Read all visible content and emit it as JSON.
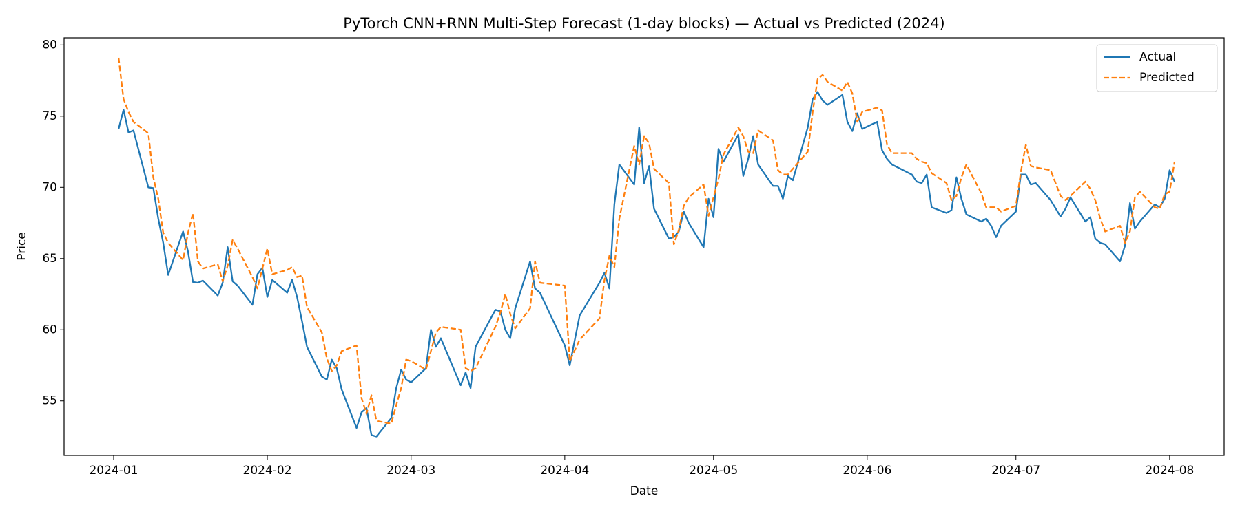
{
  "chart_data": {
    "type": "line",
    "title": "PyTorch CNN+RNN Multi-Step Forecast (1-day blocks) — Actual vs Predicted (2024)",
    "x_label": "Date",
    "y_label": "Price",
    "x": [
      "2024-01-02",
      "2024-01-03",
      "2024-01-04",
      "2024-01-05",
      "2024-01-08",
      "2024-01-09",
      "2024-01-10",
      "2024-01-11",
      "2024-01-12",
      "2024-01-15",
      "2024-01-16",
      "2024-01-17",
      "2024-01-18",
      "2024-01-19",
      "2024-01-22",
      "2024-01-23",
      "2024-01-24",
      "2024-01-25",
      "2024-01-26",
      "2024-01-29",
      "2024-01-30",
      "2024-01-31",
      "2024-02-01",
      "2024-02-02",
      "2024-02-05",
      "2024-02-06",
      "2024-02-07",
      "2024-02-08",
      "2024-02-09",
      "2024-02-12",
      "2024-02-13",
      "2024-02-14",
      "2024-02-15",
      "2024-02-16",
      "2024-02-19",
      "2024-02-20",
      "2024-02-21",
      "2024-02-22",
      "2024-02-23",
      "2024-02-26",
      "2024-02-27",
      "2024-02-28",
      "2024-02-29",
      "2024-03-01",
      "2024-03-04",
      "2024-03-05",
      "2024-03-06",
      "2024-03-07",
      "2024-03-11",
      "2024-03-12",
      "2024-03-13",
      "2024-03-14",
      "2024-03-18",
      "2024-03-19",
      "2024-03-20",
      "2024-03-21",
      "2024-03-22",
      "2024-03-25",
      "2024-03-26",
      "2024-03-27",
      "2024-04-01",
      "2024-04-02",
      "2024-04-04",
      "2024-04-08",
      "2024-04-09",
      "2024-04-10",
      "2024-04-11",
      "2024-04-12",
      "2024-04-15",
      "2024-04-16",
      "2024-04-17",
      "2024-04-18",
      "2024-04-19",
      "2024-04-22",
      "2024-04-23",
      "2024-04-24",
      "2024-04-25",
      "2024-04-26",
      "2024-04-29",
      "2024-04-30",
      "2024-05-01",
      "2024-05-02",
      "2024-05-03",
      "2024-05-06",
      "2024-05-07",
      "2024-05-08",
      "2024-05-09",
      "2024-05-10",
      "2024-05-13",
      "2024-05-14",
      "2024-05-15",
      "2024-05-16",
      "2024-05-17",
      "2024-05-20",
      "2024-05-21",
      "2024-05-22",
      "2024-05-23",
      "2024-05-24",
      "2024-05-27",
      "2024-05-28",
      "2024-05-29",
      "2024-05-30",
      "2024-05-31",
      "2024-06-03",
      "2024-06-04",
      "2024-06-05",
      "2024-06-06",
      "2024-06-10",
      "2024-06-11",
      "2024-06-12",
      "2024-06-13",
      "2024-06-14",
      "2024-06-17",
      "2024-06-18",
      "2024-06-19",
      "2024-06-20",
      "2024-06-21",
      "2024-06-24",
      "2024-06-25",
      "2024-06-26",
      "2024-06-27",
      "2024-06-28",
      "2024-07-01",
      "2024-07-02",
      "2024-07-03",
      "2024-07-04",
      "2024-07-05",
      "2024-07-08",
      "2024-07-10",
      "2024-07-11",
      "2024-07-12",
      "2024-07-15",
      "2024-07-16",
      "2024-07-17",
      "2024-07-18",
      "2024-07-19",
      "2024-07-22",
      "2024-07-23",
      "2024-07-24",
      "2024-07-25",
      "2024-07-26",
      "2024-07-29",
      "2024-07-30",
      "2024-07-31",
      "2024-08-01",
      "2024-08-02"
    ],
    "series": [
      {
        "name": "Actual",
        "color": "#1f77b4",
        "dash": false,
        "values": [
          74.1,
          75.45,
          73.85,
          74.0,
          70.0,
          69.95,
          67.8,
          66.1,
          63.85,
          66.9,
          65.5,
          63.35,
          63.3,
          63.45,
          62.4,
          63.3,
          65.8,
          63.4,
          63.1,
          61.75,
          63.9,
          64.35,
          62.3,
          63.5,
          62.6,
          63.5,
          62.3,
          60.6,
          58.8,
          56.7,
          56.5,
          57.9,
          57.3,
          55.8,
          53.1,
          54.2,
          54.5,
          52.6,
          52.5,
          53.8,
          55.9,
          57.2,
          56.5,
          56.3,
          57.3,
          60.0,
          58.8,
          59.4,
          56.1,
          57.0,
          55.9,
          58.8,
          61.4,
          61.3,
          60.0,
          59.4,
          61.5,
          64.8,
          62.9,
          62.6,
          58.9,
          57.5,
          61.0,
          63.3,
          64.0,
          62.9,
          68.8,
          71.6,
          70.2,
          74.2,
          70.3,
          71.5,
          68.5,
          66.4,
          66.5,
          66.9,
          68.3,
          67.5,
          65.8,
          69.2,
          67.9,
          72.7,
          71.8,
          73.7,
          70.8,
          72.0,
          73.6,
          71.6,
          70.1,
          70.1,
          69.2,
          70.8,
          70.5,
          74.2,
          76.2,
          76.7,
          76.1,
          75.8,
          76.5,
          74.6,
          73.95,
          75.2,
          74.1,
          74.6,
          72.6,
          72.0,
          71.6,
          70.9,
          70.4,
          70.3,
          70.9,
          68.6,
          68.2,
          68.4,
          70.7,
          69.2,
          68.1,
          67.6,
          67.8,
          67.3,
          66.5,
          67.3,
          68.3,
          70.9,
          70.9,
          70.2,
          70.3,
          69.1,
          67.95,
          68.5,
          69.3,
          67.6,
          67.9,
          66.4,
          66.1,
          66.0,
          64.8,
          65.9,
          68.9,
          67.1,
          67.6,
          68.8,
          68.6,
          69.2,
          71.2,
          70.4
        ]
      },
      {
        "name": "Predicted",
        "color": "#ff7f0e",
        "dash": true,
        "values": [
          79.1,
          76.2,
          75.3,
          74.6,
          73.8,
          70.7,
          69.2,
          66.8,
          66.1,
          64.9,
          66.8,
          68.2,
          64.8,
          64.3,
          64.6,
          63.4,
          64.5,
          66.3,
          65.7,
          63.7,
          62.9,
          64.3,
          65.7,
          63.9,
          64.2,
          64.4,
          63.7,
          63.8,
          61.6,
          59.8,
          58.0,
          57.1,
          57.5,
          58.5,
          58.9,
          55.2,
          54.1,
          55.4,
          53.6,
          53.4,
          54.7,
          55.9,
          57.9,
          57.8,
          57.2,
          58.5,
          59.8,
          60.2,
          60.0,
          57.3,
          57.1,
          57.3,
          60.2,
          61.2,
          62.5,
          61.1,
          60.1,
          61.5,
          64.8,
          63.3,
          63.1,
          57.8,
          59.3,
          60.8,
          63.5,
          65.2,
          64.4,
          67.8,
          72.9,
          71.6,
          73.6,
          73.1,
          71.3,
          70.3,
          66.0,
          67.0,
          68.7,
          69.3,
          70.2,
          68.0,
          69.3,
          70.6,
          72.3,
          74.2,
          73.6,
          72.5,
          72.4,
          74.0,
          73.3,
          71.2,
          70.9,
          70.9,
          71.3,
          72.5,
          75.3,
          77.6,
          77.9,
          77.4,
          76.8,
          77.4,
          76.6,
          74.6,
          75.3,
          75.6,
          75.4,
          73.0,
          72.4,
          72.4,
          72.0,
          71.8,
          71.7,
          71.0,
          70.3,
          69.1,
          69.4,
          70.7,
          71.6,
          69.6,
          68.6,
          68.6,
          68.6,
          68.3,
          68.7,
          71.1,
          73.0,
          71.5,
          71.4,
          71.2,
          69.4,
          69.1,
          69.4,
          70.4,
          69.9,
          69.1,
          67.8,
          66.9,
          67.3,
          66.1,
          66.9,
          69.3,
          69.7,
          68.6,
          68.5,
          69.5,
          69.7,
          71.8
        ]
      }
    ],
    "xlim": [
      "2023-12-22",
      "2024-08-12"
    ],
    "xticks": [
      {
        "value": "2024-01-01",
        "label": "2024-01"
      },
      {
        "value": "2024-02-01",
        "label": "2024-02"
      },
      {
        "value": "2024-03-01",
        "label": "2024-03"
      },
      {
        "value": "2024-04-01",
        "label": "2024-04"
      },
      {
        "value": "2024-05-01",
        "label": "2024-05"
      },
      {
        "value": "2024-06-01",
        "label": "2024-06"
      },
      {
        "value": "2024-07-01",
        "label": "2024-07"
      },
      {
        "value": "2024-08-01",
        "label": "2024-08"
      }
    ],
    "ylim": [
      51.17,
      80.5
    ],
    "yticks": [
      55,
      60,
      65,
      70,
      75,
      80
    ],
    "grid": false,
    "legend": "upper right"
  }
}
